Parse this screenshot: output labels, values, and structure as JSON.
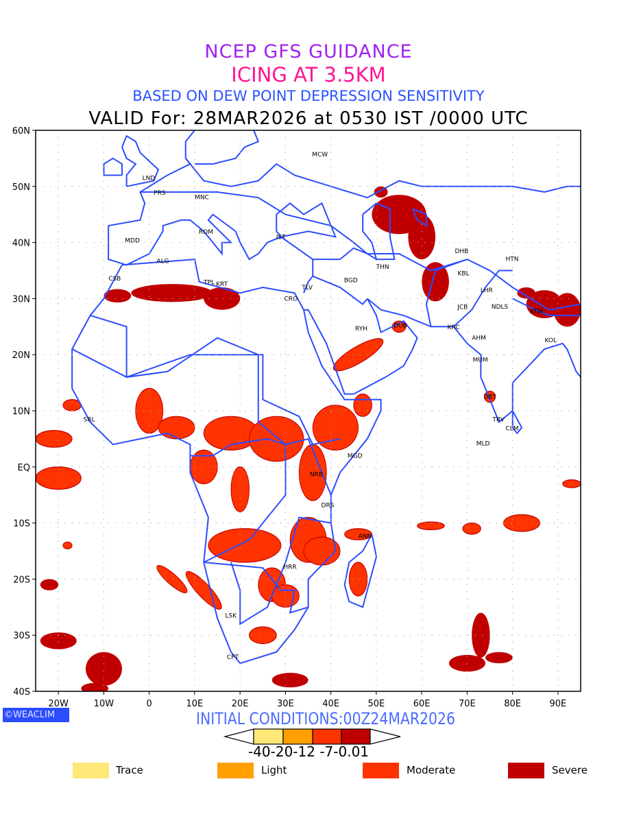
{
  "titles": {
    "line1": "NCEP GFS GUIDANCE",
    "line2": "ICING AT 3.5KM",
    "line3": "BASED ON DEW POINT DEPRESSION SENSITIVITY",
    "line4": "VALID For: 28MAR2026 at 0530 IST /0000 UTC"
  },
  "map": {
    "lon_range": [
      -25,
      95
    ],
    "lat_range": [
      -40,
      60
    ],
    "lat_ticks": [
      {
        "v": 60,
        "label": "60N"
      },
      {
        "v": 50,
        "label": "50N"
      },
      {
        "v": 40,
        "label": "40N"
      },
      {
        "v": 30,
        "label": "30N"
      },
      {
        "v": 20,
        "label": "20N"
      },
      {
        "v": 10,
        "label": "10N"
      },
      {
        "v": 0,
        "label": "EQ"
      },
      {
        "v": -10,
        "label": "10S"
      },
      {
        "v": -20,
        "label": "20S"
      },
      {
        "v": -30,
        "label": "30S"
      },
      {
        "v": -40,
        "label": "40S"
      }
    ],
    "lon_ticks": [
      {
        "v": -20,
        "label": "20W"
      },
      {
        "v": -10,
        "label": "10W"
      },
      {
        "v": 0,
        "label": "0"
      },
      {
        "v": 10,
        "label": "10E"
      },
      {
        "v": 20,
        "label": "20E"
      },
      {
        "v": 30,
        "label": "30E"
      },
      {
        "v": 40,
        "label": "40E"
      },
      {
        "v": 50,
        "label": "50E"
      },
      {
        "v": 60,
        "label": "60E"
      },
      {
        "v": 70,
        "label": "70E"
      },
      {
        "v": 80,
        "label": "80E"
      },
      {
        "v": 90,
        "label": "90E"
      }
    ],
    "cities": [
      {
        "name": "MCW",
        "lon": 37.6,
        "lat": 55.7
      },
      {
        "name": "LND",
        "lon": -0.1,
        "lat": 51.5
      },
      {
        "name": "PRS",
        "lon": 2.3,
        "lat": 48.9
      },
      {
        "name": "MNC",
        "lon": 11.6,
        "lat": 48.1
      },
      {
        "name": "ROM",
        "lon": 12.5,
        "lat": 41.9
      },
      {
        "name": "MDD",
        "lon": -3.7,
        "lat": 40.4
      },
      {
        "name": "IST",
        "lon": 29,
        "lat": 41
      },
      {
        "name": "ALG",
        "lon": 3,
        "lat": 36.7
      },
      {
        "name": "CSB",
        "lon": -7.6,
        "lat": 33.6
      },
      {
        "name": "TPL",
        "lon": 13.2,
        "lat": 32.9
      },
      {
        "name": "KRT",
        "lon": 16,
        "lat": 32.6
      },
      {
        "name": "TLV",
        "lon": 34.8,
        "lat": 32
      },
      {
        "name": "CRO",
        "lon": 31.2,
        "lat": 30
      },
      {
        "name": "BGD",
        "lon": 44.4,
        "lat": 33.3
      },
      {
        "name": "THN",
        "lon": 51.4,
        "lat": 35.7
      },
      {
        "name": "DHB",
        "lon": 68.8,
        "lat": 38.5
      },
      {
        "name": "HTN",
        "lon": 79.9,
        "lat": 37.1
      },
      {
        "name": "KBL",
        "lon": 69.2,
        "lat": 34.5
      },
      {
        "name": "LHR",
        "lon": 74.3,
        "lat": 31.5
      },
      {
        "name": "JCB",
        "lon": 69,
        "lat": 28.5
      },
      {
        "name": "NDLS",
        "lon": 77.2,
        "lat": 28.6
      },
      {
        "name": "KTM",
        "lon": 85.3,
        "lat": 27.7
      },
      {
        "name": "RYH",
        "lon": 46.7,
        "lat": 24.7
      },
      {
        "name": "DUB",
        "lon": 55.3,
        "lat": 25.2
      },
      {
        "name": "KRC",
        "lon": 67,
        "lat": 24.9
      },
      {
        "name": "AHM",
        "lon": 72.6,
        "lat": 23
      },
      {
        "name": "KOL",
        "lon": 88.4,
        "lat": 22.6
      },
      {
        "name": "MUM",
        "lon": 72.9,
        "lat": 19.1
      },
      {
        "name": "DBT",
        "lon": 75,
        "lat": 12.5
      },
      {
        "name": "TRV",
        "lon": 76.9,
        "lat": 8.5
      },
      {
        "name": "CLM",
        "lon": 79.9,
        "lat": 6.9
      },
      {
        "name": "MLD",
        "lon": 73.5,
        "lat": 4.2
      },
      {
        "name": "SRL",
        "lon": -13.2,
        "lat": 8.5
      },
      {
        "name": "MGD",
        "lon": 45.3,
        "lat": 2
      },
      {
        "name": "NRB",
        "lon": 36.8,
        "lat": -1.3
      },
      {
        "name": "DRS",
        "lon": 39.3,
        "lat": -6.8
      },
      {
        "name": "ANN",
        "lon": 47.5,
        "lat": -12.3
      },
      {
        "name": "HRR",
        "lon": 31,
        "lat": -17.8
      },
      {
        "name": "LSK",
        "lon": 18,
        "lat": -26.5
      },
      {
        "name": "CPT",
        "lon": 18.4,
        "lat": -33.9
      }
    ]
  },
  "footer": {
    "logo": "©WEACLIM",
    "initial_conditions": "INITIAL CONDITIONS:00Z24MAR2026",
    "colorbar_values": "-40-20-12 -7-0.01"
  },
  "legend": [
    {
      "label": "Trace",
      "color": "#ffe778"
    },
    {
      "label": "Light",
      "color": "#ffa000"
    },
    {
      "label": "Moderate",
      "color": "#ff3300"
    },
    {
      "label": "Severe",
      "color": "#c00000"
    }
  ]
}
